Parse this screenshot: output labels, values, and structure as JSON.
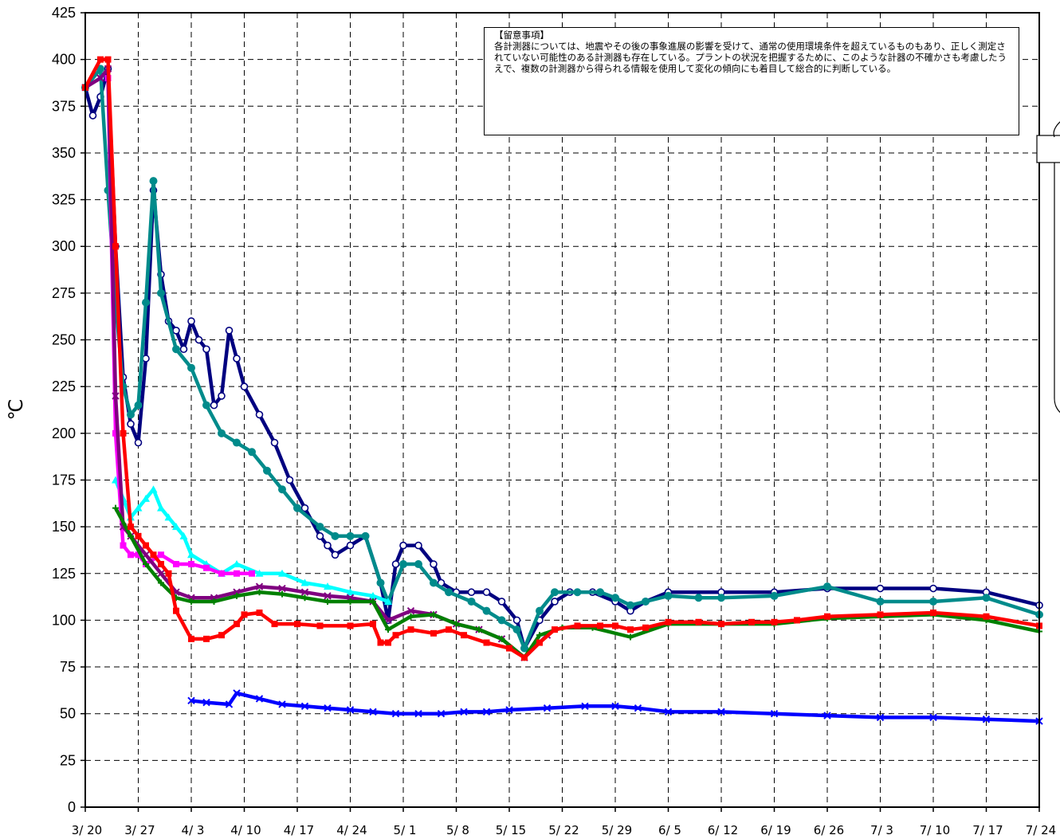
{
  "chart_data": {
    "type": "line",
    "title": "",
    "xlabel": "",
    "ylabel": "℃",
    "ylim": [
      0,
      425
    ],
    "xlim": [
      "3/20",
      "7/24"
    ],
    "grid": true,
    "y_ticks": [
      0,
      25,
      50,
      75,
      100,
      125,
      150,
      175,
      200,
      225,
      250,
      275,
      300,
      325,
      350,
      375,
      400,
      425
    ],
    "x_ticks": [
      "3/20",
      "3/27",
      "4/3",
      "4/10",
      "4/17",
      "4/24",
      "5/1",
      "5/8",
      "5/15",
      "5/22",
      "5/29",
      "6/5",
      "6/12",
      "6/19",
      "6/26",
      "7/3",
      "7/10",
      "7/17",
      "7/24"
    ],
    "x_tick_labels": [
      "3/ 20",
      "3/ 27",
      "4/ 3",
      "4/ 10",
      "4/ 17",
      "4/ 24",
      "5/ 1",
      "5/ 8",
      "5/ 15",
      "5/ 22",
      "5/ 29",
      "6/ 5",
      "6/ 12",
      "6/ 19",
      "6/ 26",
      "7/ 3",
      "7/ 10",
      "7/ 17",
      "7/ 24"
    ],
    "annotation": {
      "title": "【留意事項】",
      "text": "各計測器については、地震やその後の事象進展の影響を受けて、通常の使用環境条件を超えているものもあり、正しく測定されていない可能性のある計測器も存在している。プラントの状況を把握するために、このような計器の不確かさも考慮したうえで、複数の計測器から得られる情報を使用して変化の傾向にも着目して総合的に判断している。"
    },
    "series": [
      {
        "color": "#000080",
        "marker": "circle-open",
        "x": [
          "3/20",
          "3/21",
          "3/22",
          "3/23",
          "3/24",
          "3/25",
          "3/26",
          "3/27",
          "3/28",
          "3/29",
          "3/30",
          "3/31",
          "4/1",
          "4/2",
          "4/3",
          "4/4",
          "4/5",
          "4/6",
          "4/7",
          "4/8",
          "4/9",
          "4/10",
          "4/12",
          "4/14",
          "4/16",
          "4/18",
          "4/20",
          "4/21",
          "4/22",
          "4/24",
          "4/26",
          "4/28",
          "4/29",
          "4/30",
          "5/1",
          "5/3",
          "5/5",
          "5/6",
          "5/8",
          "5/10",
          "5/12",
          "5/14",
          "5/16",
          "5/17",
          "5/19",
          "5/21",
          "5/23",
          "5/26",
          "5/29",
          "5/31",
          "6/2",
          "6/5",
          "6/12",
          "6/19",
          "6/26",
          "7/3",
          "7/10",
          "7/17",
          "7/24"
        ],
        "y": [
          385,
          370,
          380,
          395,
          300,
          230,
          205,
          195,
          240,
          330,
          285,
          260,
          255,
          245,
          260,
          250,
          245,
          215,
          220,
          255,
          240,
          225,
          210,
          195,
          175,
          160,
          145,
          140,
          135,
          140,
          145,
          120,
          100,
          130,
          140,
          140,
          130,
          120,
          115,
          115,
          115,
          110,
          100,
          85,
          100,
          110,
          115,
          115,
          110,
          105,
          110,
          115,
          115,
          115,
          117,
          117,
          117,
          115,
          108
        ]
      },
      {
        "color": "#008B8B",
        "marker": "circle",
        "x": [
          "3/20",
          "3/22",
          "3/23",
          "3/24",
          "3/25",
          "3/26",
          "3/27",
          "3/28",
          "3/29",
          "3/30",
          "4/1",
          "4/3",
          "4/5",
          "4/7",
          "4/9",
          "4/11",
          "4/13",
          "4/15",
          "4/17",
          "4/20",
          "4/22",
          "4/24",
          "4/26",
          "4/28",
          "4/29",
          "5/1",
          "5/3",
          "5/5",
          "5/7",
          "5/10",
          "5/12",
          "5/14",
          "5/16",
          "5/17",
          "5/19",
          "5/21",
          "5/24",
          "5/27",
          "5/29",
          "5/31",
          "6/2",
          "6/5",
          "6/9",
          "6/12",
          "6/19",
          "6/26",
          "7/3",
          "7/10",
          "7/17",
          "7/24"
        ],
        "y": [
          385,
          395,
          330,
          270,
          225,
          210,
          215,
          270,
          335,
          275,
          245,
          235,
          215,
          200,
          195,
          190,
          180,
          170,
          160,
          150,
          145,
          145,
          145,
          120,
          110,
          130,
          130,
          120,
          115,
          110,
          105,
          100,
          95,
          85,
          105,
          115,
          115,
          115,
          112,
          108,
          110,
          113,
          112,
          112,
          113,
          118,
          110,
          110,
          112,
          103
        ]
      },
      {
        "color": "#00FFFF",
        "marker": "triangle",
        "x": [
          "3/24",
          "3/25",
          "3/26",
          "3/27",
          "3/28",
          "3/29",
          "3/30",
          "3/31",
          "4/1",
          "4/2",
          "4/3",
          "4/5",
          "4/7",
          "4/9",
          "4/12",
          "4/15",
          "4/18",
          "4/21",
          "4/24",
          "4/27",
          "4/29"
        ],
        "y": [
          175,
          165,
          155,
          160,
          165,
          170,
          160,
          155,
          150,
          145,
          135,
          130,
          125,
          130,
          125,
          125,
          120,
          118,
          115,
          113,
          110
        ]
      },
      {
        "color": "#FF00FF",
        "marker": "square",
        "x": [
          "3/23",
          "3/24",
          "3/25",
          "3/26",
          "3/27",
          "3/28",
          "3/30",
          "4/1",
          "4/3",
          "4/5",
          "4/7",
          "4/9",
          "4/11"
        ],
        "y": [
          390,
          200,
          140,
          135,
          135,
          130,
          135,
          130,
          130,
          128,
          125,
          125,
          125
        ]
      },
      {
        "color": "#800080",
        "marker": "x",
        "x": [
          "3/20",
          "3/22",
          "3/23",
          "3/24",
          "3/25",
          "3/26",
          "3/28",
          "3/30",
          "4/1",
          "4/3",
          "4/6",
          "4/9",
          "4/12",
          "4/15",
          "4/18",
          "4/21",
          "4/24",
          "4/27",
          "4/29",
          "5/2",
          "5/5",
          "5/8",
          "5/11",
          "5/14",
          "5/17",
          "5/20"
        ],
        "y": [
          385,
          390,
          395,
          220,
          150,
          145,
          135,
          125,
          115,
          112,
          112,
          115,
          118,
          117,
          115,
          113,
          112,
          110,
          100,
          105,
          103,
          98,
          95,
          90,
          80,
          92
        ]
      },
      {
        "color": "#008000",
        "marker": "plus",
        "x": [
          "3/24",
          "3/26",
          "3/28",
          "3/30",
          "4/1",
          "4/3",
          "4/6",
          "4/9",
          "4/12",
          "4/15",
          "4/18",
          "4/21",
          "4/24",
          "4/27",
          "4/29",
          "5/2",
          "5/5",
          "5/8",
          "5/11",
          "5/14",
          "5/17",
          "5/19",
          "5/22",
          "5/26",
          "5/31",
          "6/5",
          "6/12",
          "6/19",
          "6/26",
          "7/3",
          "7/10",
          "7/17",
          "7/24"
        ],
        "y": [
          160,
          145,
          130,
          120,
          112,
          110,
          110,
          113,
          115,
          114,
          112,
          110,
          110,
          110,
          95,
          102,
          103,
          98,
          95,
          90,
          80,
          92,
          96,
          96,
          91,
          98,
          98,
          98,
          101,
          102,
          103,
          100,
          94
        ]
      },
      {
        "color": "#FF0000",
        "marker": "square",
        "x": [
          "3/20",
          "3/22",
          "3/23",
          "3/24",
          "3/25",
          "3/26",
          "3/27",
          "3/28",
          "3/29",
          "3/30",
          "3/31",
          "4/1",
          "4/3",
          "4/5",
          "4/7",
          "4/9",
          "4/10",
          "4/12",
          "4/14",
          "4/17",
          "4/20",
          "4/24",
          "4/27",
          "4/28",
          "4/29",
          "4/30",
          "5/2",
          "5/5",
          "5/7",
          "5/9",
          "5/12",
          "5/15",
          "5/17",
          "5/19",
          "5/21",
          "5/24",
          "5/27",
          "5/29",
          "5/31",
          "6/2",
          "6/5",
          "6/9",
          "6/12",
          "6/16",
          "6/19",
          "6/22",
          "6/26",
          "7/3",
          "7/10",
          "7/17",
          "7/24"
        ],
        "y": [
          385,
          400,
          400,
          300,
          200,
          150,
          145,
          140,
          135,
          130,
          125,
          105,
          90,
          90,
          92,
          98,
          103,
          104,
          98,
          98,
          97,
          97,
          98,
          88,
          88,
          92,
          95,
          93,
          95,
          92,
          88,
          85,
          80,
          88,
          95,
          97,
          97,
          97,
          95,
          96,
          99,
          99,
          98,
          99,
          99,
          100,
          102,
          103,
          104,
          102,
          97
        ]
      },
      {
        "color": "#0000FF",
        "marker": "x",
        "x": [
          "4/3",
          "4/5",
          "4/8",
          "4/9",
          "4/12",
          "4/15",
          "4/18",
          "4/21",
          "4/24",
          "4/27",
          "4/30",
          "5/3",
          "5/6",
          "5/9",
          "5/12",
          "5/15",
          "5/20",
          "5/25",
          "5/29",
          "6/1",
          "6/5",
          "6/12",
          "6/19",
          "6/26",
          "7/3",
          "7/10",
          "7/17",
          "7/24"
        ],
        "y": [
          57,
          56,
          55,
          61,
          58,
          55,
          54,
          53,
          52,
          51,
          50,
          50,
          50,
          51,
          51,
          52,
          53,
          54,
          54,
          53,
          51,
          51,
          50,
          49,
          48,
          48,
          47,
          46
        ]
      }
    ]
  }
}
